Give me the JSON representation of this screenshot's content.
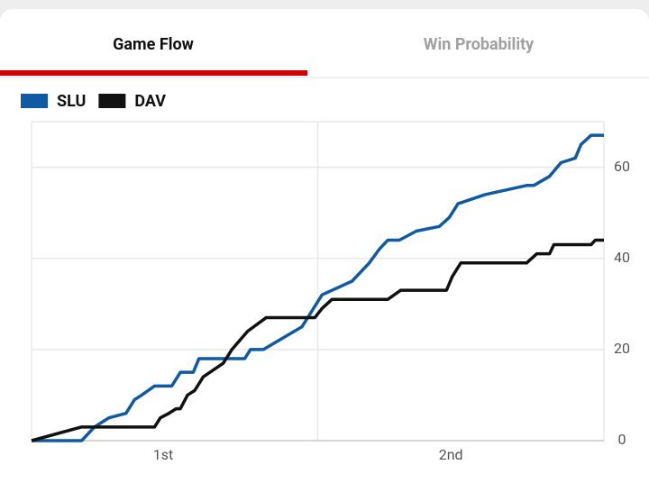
{
  "tabs": [
    "Game Flow",
    "Win Probability"
  ],
  "chart_data": {
    "type": "line",
    "series": [
      {
        "name": "SLU",
        "color": "#0f5aa3",
        "x": [
          0,
          3.5,
          4.4,
          5.4,
          6.6,
          7.2,
          7.7,
          8.6,
          9.8,
          10.4,
          11.3,
          11.7,
          14.9,
          15.3,
          16.2,
          18.9,
          19.5,
          20.3,
          22.4,
          23.6,
          24.3,
          24.9,
          25.7,
          26.9,
          28.5,
          29.2,
          29.8,
          31.7,
          34.6,
          35.1,
          36.2,
          37,
          38,
          38.4,
          39.1,
          40
        ],
        "values": [
          0,
          0,
          3,
          5,
          6,
          9,
          10,
          12,
          12,
          15,
          15,
          18,
          18,
          20,
          20,
          25,
          28,
          32,
          35,
          39,
          42,
          44,
          44,
          46,
          47,
          49,
          52,
          54,
          56,
          56,
          58,
          61,
          62,
          65,
          67,
          67
        ]
      },
      {
        "name": "DAV",
        "color": "#111111",
        "x": [
          0,
          3.5,
          8.6,
          9,
          9.6,
          10.1,
          10.4,
          10.9,
          11.4,
          12,
          13.4,
          14,
          15.1,
          16.4,
          19.8,
          20.3,
          21,
          24.9,
          25.8,
          29,
          29.4,
          30,
          34.6,
          35.3,
          36.2,
          36.5,
          39.1,
          39.4,
          40
        ],
        "values": [
          0,
          3,
          3,
          5,
          6,
          7,
          7,
          10,
          11,
          14,
          17,
          20,
          24,
          27,
          27,
          29,
          31,
          31,
          33,
          33,
          36,
          39,
          39,
          41,
          41,
          43,
          43,
          44,
          44
        ]
      }
    ],
    "xlim": [
      0,
      40
    ],
    "xticks": [
      {
        "value": 9.2,
        "label": "1st"
      },
      {
        "value": 29.3,
        "label": "2nd"
      }
    ],
    "vgrid": [
      20
    ],
    "ylim": [
      0,
      70
    ],
    "yticks": [
      0,
      20,
      40,
      60
    ],
    "grid": true
  }
}
